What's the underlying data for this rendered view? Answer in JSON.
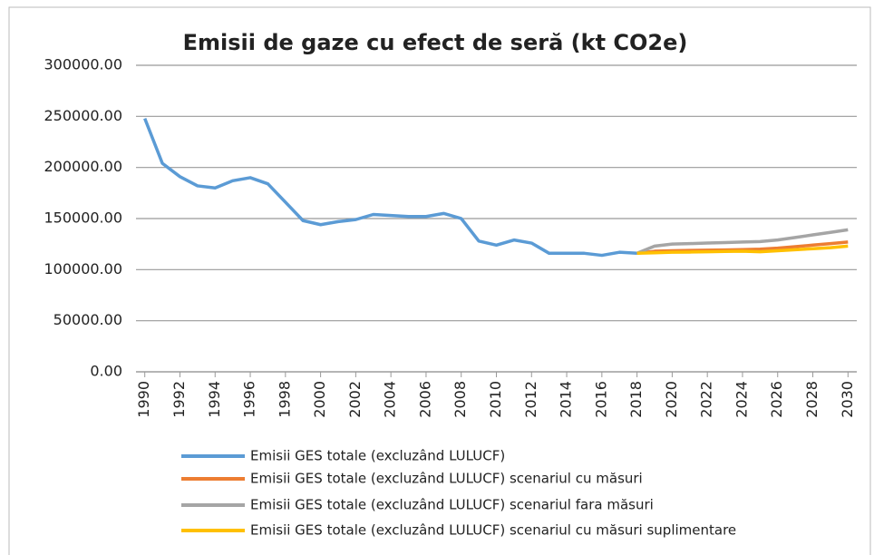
{
  "chart_data": {
    "type": "line",
    "title": "Emisii de gaze cu efect de seră (kt CO2e)",
    "x": [
      1990,
      1991,
      1992,
      1993,
      1994,
      1995,
      1996,
      1997,
      1998,
      1999,
      2000,
      2001,
      2002,
      2003,
      2004,
      2005,
      2006,
      2007,
      2008,
      2009,
      2010,
      2011,
      2012,
      2013,
      2014,
      2015,
      2016,
      2017,
      2018,
      2019,
      2020,
      2021,
      2022,
      2023,
      2024,
      2025,
      2026,
      2027,
      2028,
      2029,
      2030
    ],
    "series": [
      {
        "name": "Emisii GES totale (excluzând LULUCF)",
        "color": "#5b9bd5",
        "values": [
          248000,
          204000,
          191000,
          182000,
          180000,
          187000,
          190000,
          184000,
          166000,
          148000,
          144000,
          147000,
          149000,
          154000,
          153000,
          152000,
          152000,
          155000,
          150000,
          128000,
          124000,
          129000,
          126000,
          116000,
          116000,
          116000,
          114000,
          117000,
          116000,
          null,
          null,
          null,
          null,
          null,
          null,
          null,
          null,
          null,
          null,
          null,
          null
        ]
      },
      {
        "name": "Emisii GES totale (excluzând LULUCF) scenariul cu măsuri",
        "color": "#ed7d31",
        "values": [
          null,
          null,
          null,
          null,
          null,
          null,
          null,
          null,
          null,
          null,
          null,
          null,
          null,
          null,
          null,
          null,
          null,
          null,
          null,
          null,
          null,
          null,
          null,
          null,
          null,
          null,
          null,
          null,
          116000,
          118000,
          118500,
          118800,
          119000,
          119300,
          119600,
          120000,
          121000,
          122500,
          124000,
          125500,
          127000
        ]
      },
      {
        "name": "Emisii GES totale (excluzând LULUCF) scenariul fara măsuri",
        "color": "#a5a5a5",
        "values": [
          null,
          null,
          null,
          null,
          null,
          null,
          null,
          null,
          null,
          null,
          null,
          null,
          null,
          null,
          null,
          null,
          null,
          null,
          null,
          null,
          null,
          null,
          null,
          null,
          null,
          null,
          null,
          null,
          116000,
          123000,
          125000,
          125500,
          126000,
          126500,
          127000,
          127500,
          129000,
          131500,
          134000,
          136500,
          139000
        ]
      },
      {
        "name": "Emisii GES totale (excluzând LULUCF) scenariul cu măsuri suplimentare",
        "color": "#ffc000",
        "values": [
          null,
          null,
          null,
          null,
          null,
          null,
          null,
          null,
          null,
          null,
          null,
          null,
          null,
          null,
          null,
          null,
          null,
          null,
          null,
          null,
          null,
          null,
          null,
          null,
          null,
          null,
          null,
          null,
          116000,
          116500,
          117000,
          117200,
          117500,
          117800,
          118000,
          117500,
          118500,
          119500,
          120500,
          121500,
          123000
        ]
      }
    ],
    "xlim": [
      1989.5,
      2030.5
    ],
    "xticks": [
      1990,
      1992,
      1994,
      1996,
      1998,
      2000,
      2002,
      2004,
      2006,
      2008,
      2010,
      2012,
      2014,
      2016,
      2018,
      2020,
      2022,
      2024,
      2026,
      2028,
      2030
    ],
    "ylim": [
      0,
      300000
    ],
    "yticks": [
      {
        "value": 0,
        "label": "0.00"
      },
      {
        "value": 50000,
        "label": "50000.00"
      },
      {
        "value": 100000,
        "label": "100000.00"
      },
      {
        "value": 150000,
        "label": "150000.00"
      },
      {
        "value": 200000,
        "label": "200000.00"
      },
      {
        "value": 250000,
        "label": "250000.00"
      },
      {
        "value": 300000,
        "label": "300000.00"
      }
    ],
    "grid": true
  }
}
